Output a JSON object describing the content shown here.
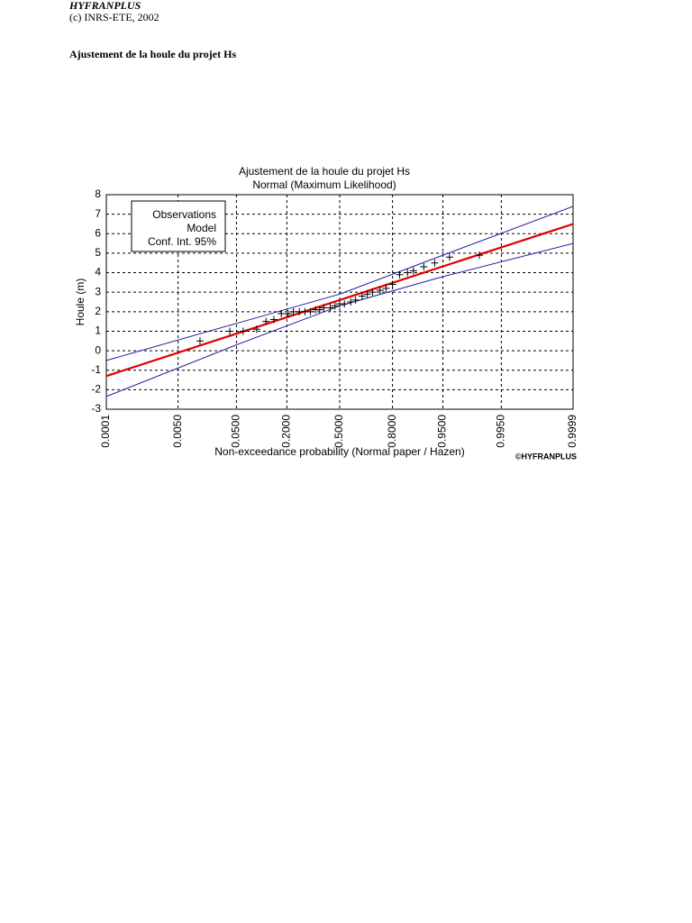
{
  "header": {
    "app": "HYFRANPLUS",
    "copyright": "(c) INRS-ETE, 2002"
  },
  "section_title": "Ajustement de la houle du projet Hs",
  "chart_data": {
    "type": "probability-plot",
    "title": "Ajustement de la houle du projet Hs",
    "subtitle": "Normal (Maximum Likelihood)",
    "y_label": "Houle (m)",
    "x_label": "Non-exceedance probability (Normal paper / Hazen)",
    "credit": "©HYFRANPLUS",
    "xscale": "normal",
    "xlim": [
      0.0001,
      0.9999
    ],
    "xticks": [
      {
        "value": 0.0001,
        "label": "0.0001"
      },
      {
        "value": 0.005,
        "label": "0.0050"
      },
      {
        "value": 0.05,
        "label": "0.0500"
      },
      {
        "value": 0.2,
        "label": "0.2000"
      },
      {
        "value": 0.5,
        "label": "0.5000"
      },
      {
        "value": 0.8,
        "label": "0.8000"
      },
      {
        "value": 0.95,
        "label": "0.9500"
      },
      {
        "value": 0.995,
        "label": "0.9950"
      },
      {
        "value": 0.9999,
        "label": "0.9999"
      }
    ],
    "ylim": [
      -3,
      8
    ],
    "yticks": [
      -3,
      -2,
      -1,
      0,
      1,
      2,
      3,
      4,
      5,
      6,
      7,
      8
    ],
    "grid": true,
    "legend": "top-left",
    "series": [
      {
        "name": "Observations",
        "color": "#000000",
        "x": [
          0.013,
          0.04,
          0.062,
          0.093,
          0.12,
          0.147,
          0.176,
          0.206,
          0.23,
          0.26,
          0.29,
          0.32,
          0.35,
          0.375,
          0.4,
          0.44,
          0.47,
          0.5,
          0.53,
          0.57,
          0.6,
          0.64,
          0.67,
          0.7,
          0.74,
          0.77,
          0.8,
          0.83,
          0.86,
          0.88,
          0.91,
          0.935,
          0.96,
          0.987
        ],
        "values": [
          0.5,
          1.0,
          1.0,
          1.1,
          1.5,
          1.6,
          1.9,
          1.9,
          2.0,
          2.0,
          2.0,
          2.0,
          2.1,
          2.1,
          2.2,
          2.2,
          2.3,
          2.4,
          2.4,
          2.5,
          2.6,
          2.8,
          2.9,
          3.0,
          3.1,
          3.2,
          3.4,
          3.9,
          4.0,
          4.1,
          4.3,
          4.5,
          4.8,
          4.9
        ]
      },
      {
        "name": "Model",
        "color": "#e00000",
        "x": [
          0.0001,
          0.9999
        ],
        "values": [
          -1.3,
          6.5
        ]
      },
      {
        "name": "Conf. Int. 95%",
        "color": "#2020a0",
        "x": [
          0.0001,
          0.05,
          0.5,
          0.95,
          0.9999
        ],
        "upper": [
          -0.5,
          1.4,
          2.9,
          4.9,
          7.4
        ],
        "lower": [
          -2.35,
          0.3,
          2.3,
          3.8,
          5.5
        ]
      }
    ]
  }
}
